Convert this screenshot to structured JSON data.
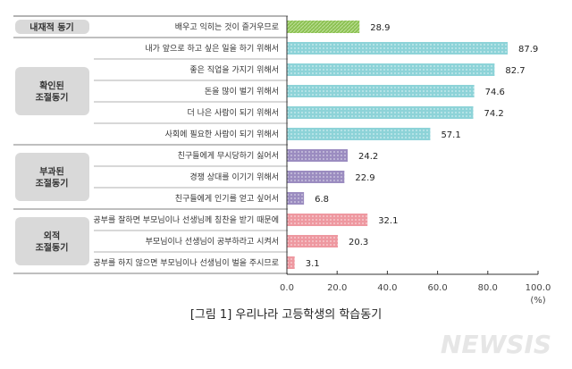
{
  "chart_data": {
    "type": "bar",
    "orientation": "horizontal",
    "caption": "[그림 1] 우리나라 고등학생의 학습동기",
    "unit": "(%)",
    "xlim": [
      0,
      100
    ],
    "xticks": [
      "0.0",
      "20.0",
      "40.0",
      "60.0",
      "80.0",
      "100.0"
    ],
    "groups": [
      {
        "name": "내재적 동기",
        "color": "#8cc152",
        "items": [
          {
            "label": "배우고 익히는 것이 즐거우므로",
            "value": 28.9
          }
        ]
      },
      {
        "name": "확인된\n조절동기",
        "color": "#8dd3d8",
        "items": [
          {
            "label": "내가 앞으로 하고 싶은 일을 하기 위해서",
            "value": 87.9
          },
          {
            "label": "좋은 직업을 가지기 위해서",
            "value": 82.7
          },
          {
            "label": "돈을 많이 벌기 위해서",
            "value": 74.6
          },
          {
            "label": "더 나은 사람이 되기 위해서",
            "value": 74.2
          },
          {
            "label": "사회에 필요한 사람이 되기 위해서",
            "value": 57.1
          }
        ]
      },
      {
        "name": "부과된\n조절동기",
        "color": "#9b8cc0",
        "items": [
          {
            "label": "친구들에게 무시당하기 싫어서",
            "value": 24.2
          },
          {
            "label": "경쟁 상대를 이기기 위해서",
            "value": 22.9
          },
          {
            "label": "친구들에게 인기를 얻고 싶어서",
            "value": 6.8
          }
        ]
      },
      {
        "name": "외적\n조절동기",
        "color": "#ee98a0",
        "items": [
          {
            "label": "공부를 잘하면 부모님이나 선생님께 칭찬을 받기 때문에",
            "value": 32.1
          },
          {
            "label": "부모님이나 선생님이 공부하라고 시켜서",
            "value": 20.3
          },
          {
            "label": "공부를 하지 않으면 부모님이나 선생님이 벌을 주시므로",
            "value": 3.1
          }
        ]
      }
    ]
  },
  "watermark": "NEWSIS"
}
